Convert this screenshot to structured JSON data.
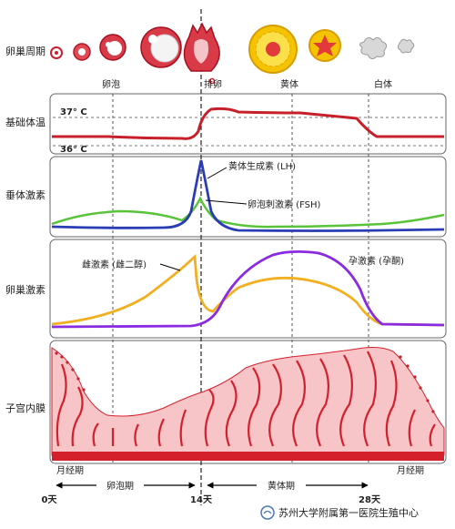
{
  "rows": [
    {
      "label": "卵巢周期"
    },
    {
      "label": "基础体温"
    },
    {
      "label": "垂体激素"
    },
    {
      "label": "卵巢激素"
    },
    {
      "label": "子宫内膜"
    }
  ],
  "ovary": {
    "phase_follicle": "卵泡",
    "phase_ovulation": "排卵",
    "phase_luteal": "黄体",
    "phase_albicans": "白体"
  },
  "bbt": {
    "temp_high": "37° C",
    "temp_low": "36° C"
  },
  "pituitary": {
    "lh_label": "黄体生成素 (LH)",
    "fsh_label": "卵泡刺激素 (FSH)"
  },
  "ovarian": {
    "estrogen_label": "雌激素 (雌二醇)",
    "progesterone_label": "孕激素 (孕酮)"
  },
  "endometrium": {
    "menses_left": "月经期",
    "menses_right": "月经期",
    "follicular_phase": "卵泡期",
    "luteal_phase": "黄体期"
  },
  "days": {
    "d0": "0天",
    "d14": "14天",
    "d28": "28天"
  },
  "watermark": "苏州大学附属第一医院生殖中心",
  "colors": {
    "bbt": "#c8202a",
    "lh": "#2a3db5",
    "fsh": "#59c43a",
    "estrogen": "#f0b020",
    "progesterone": "#8a2be2",
    "tissue": "#f7c4c8",
    "vessel": "#d4202a",
    "luteum": "#f5c400"
  }
}
